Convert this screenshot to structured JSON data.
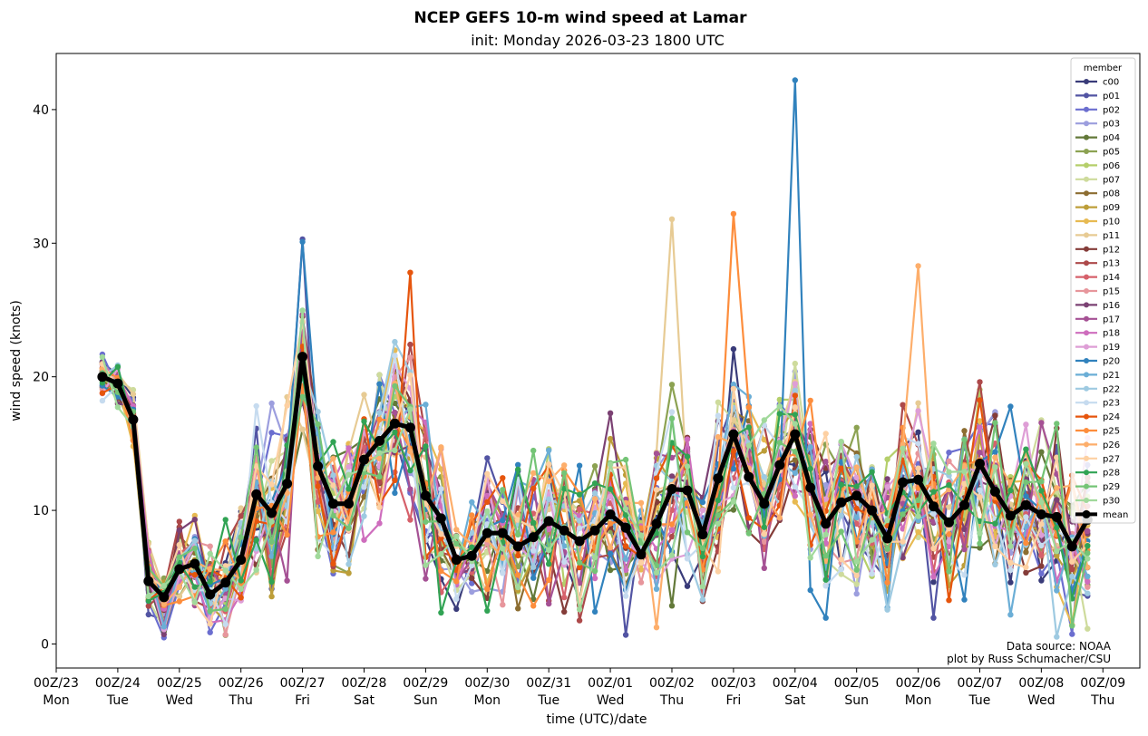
{
  "chart_data": {
    "type": "line",
    "title": "NCEP GEFS 10-m wind speed at Lamar",
    "subtitle": "init: Monday 2026-03-23 1800 UTC",
    "xlabel": "time (UTC)/date",
    "ylabel": "wind speed (knots)",
    "ylim": [
      -1.8,
      44.2
    ],
    "xlim": [
      0,
      17.6
    ],
    "y_ticks": [
      0,
      10,
      20,
      30,
      40
    ],
    "x_ticks": [
      {
        "x": 0,
        "date": "00Z/23",
        "day": "Mon"
      },
      {
        "x": 1,
        "date": "00Z/24",
        "day": "Tue"
      },
      {
        "x": 2,
        "date": "00Z/25",
        "day": "Wed"
      },
      {
        "x": 3,
        "date": "00Z/26",
        "day": "Thu"
      },
      {
        "x": 4,
        "date": "00Z/27",
        "day": "Fri"
      },
      {
        "x": 5,
        "date": "00Z/28",
        "day": "Sat"
      },
      {
        "x": 6,
        "date": "00Z/29",
        "day": "Sun"
      },
      {
        "x": 7,
        "date": "00Z/30",
        "day": "Mon"
      },
      {
        "x": 8,
        "date": "00Z/31",
        "day": "Tue"
      },
      {
        "x": 9,
        "date": "00Z/01",
        "day": "Wed"
      },
      {
        "x": 10,
        "date": "00Z/02",
        "day": "Thu"
      },
      {
        "x": 11,
        "date": "00Z/03",
        "day": "Fri"
      },
      {
        "x": 12,
        "date": "00Z/04",
        "day": "Sat"
      },
      {
        "x": 13,
        "date": "00Z/05",
        "day": "Sun"
      },
      {
        "x": 14,
        "date": "00Z/06",
        "day": "Mon"
      },
      {
        "x": 15,
        "date": "00Z/07",
        "day": "Tue"
      },
      {
        "x": 16,
        "date": "00Z/08",
        "day": "Wed"
      },
      {
        "x": 17,
        "date": "00Z/09",
        "day": "Thu"
      }
    ],
    "x_units": "days since 00Z/23",
    "x_step": 0.25,
    "x_start": 0.75,
    "legend_title": "member",
    "legend_position": "upper right",
    "grid": false,
    "annotation": [
      "Data source: NOAA",
      "plot by Russ Schumacher/CSU"
    ],
    "series": [
      {
        "name": "c00",
        "color": "#393b79"
      },
      {
        "name": "p01",
        "color": "#5254a3"
      },
      {
        "name": "p02",
        "color": "#6b6ecf"
      },
      {
        "name": "p03",
        "color": "#9c9ede"
      },
      {
        "name": "p04",
        "color": "#637939"
      },
      {
        "name": "p05",
        "color": "#8ca252"
      },
      {
        "name": "p06",
        "color": "#b5cf6b"
      },
      {
        "name": "p07",
        "color": "#cedb9c"
      },
      {
        "name": "p08",
        "color": "#8c6d31"
      },
      {
        "name": "p09",
        "color": "#bd9e39"
      },
      {
        "name": "p10",
        "color": "#e7ba52"
      },
      {
        "name": "p11",
        "color": "#e7cb94"
      },
      {
        "name": "p12",
        "color": "#843c39"
      },
      {
        "name": "p13",
        "color": "#ad494a"
      },
      {
        "name": "p14",
        "color": "#d6616b"
      },
      {
        "name": "p15",
        "color": "#e7969c"
      },
      {
        "name": "p16",
        "color": "#7b4173"
      },
      {
        "name": "p17",
        "color": "#a55194"
      },
      {
        "name": "p18",
        "color": "#ce6dbd"
      },
      {
        "name": "p19",
        "color": "#de9ed6"
      },
      {
        "name": "p20",
        "color": "#3182bd"
      },
      {
        "name": "p21",
        "color": "#6baed6"
      },
      {
        "name": "p22",
        "color": "#9ecae1"
      },
      {
        "name": "p23",
        "color": "#c6dbef"
      },
      {
        "name": "p24",
        "color": "#e6550d"
      },
      {
        "name": "p25",
        "color": "#fd8d3c"
      },
      {
        "name": "p26",
        "color": "#fdae6b"
      },
      {
        "name": "p27",
        "color": "#fdd0a2"
      },
      {
        "name": "p28",
        "color": "#31a354"
      },
      {
        "name": "p29",
        "color": "#74c476"
      },
      {
        "name": "p30",
        "color": "#a1d99b"
      }
    ],
    "mean": {
      "name": "mean",
      "color": "#000000",
      "values": [
        20.0,
        19.5,
        16.8,
        4.7,
        3.5,
        5.6,
        6.0,
        3.7,
        4.6,
        6.3,
        11.2,
        9.8,
        12.0,
        21.5,
        13.3,
        10.5,
        10.5,
        13.8,
        15.2,
        16.5,
        16.2,
        11.1,
        9.4,
        6.3,
        6.6,
        8.3,
        8.3,
        7.3,
        8.0,
        9.2,
        8.5,
        7.7,
        8.5,
        9.7,
        8.7,
        6.7,
        9.0,
        11.6,
        11.5,
        8.2,
        12.4,
        15.7,
        12.5,
        10.5,
        13.4,
        15.7,
        11.7,
        9.0,
        10.6,
        11.1,
        10.0,
        7.9,
        12.1,
        12.3,
        10.3,
        9.1,
        10.4,
        13.5,
        11.4,
        9.6,
        10.4,
        9.7,
        9.5,
        7.3,
        9.3
      ]
    },
    "extreme_points": [
      {
        "series": "p01",
        "x": 4.0,
        "y": 30.3
      },
      {
        "series": "p20",
        "x": 12.0,
        "y": 42.2
      },
      {
        "series": "p25",
        "x": 11.0,
        "y": 32.2
      },
      {
        "series": "p11",
        "x": 10.0,
        "y": 31.8
      },
      {
        "series": "p24",
        "x": 5.75,
        "y": 27.8
      },
      {
        "series": "p26",
        "x": 14.0,
        "y": 28.3
      }
    ]
  }
}
